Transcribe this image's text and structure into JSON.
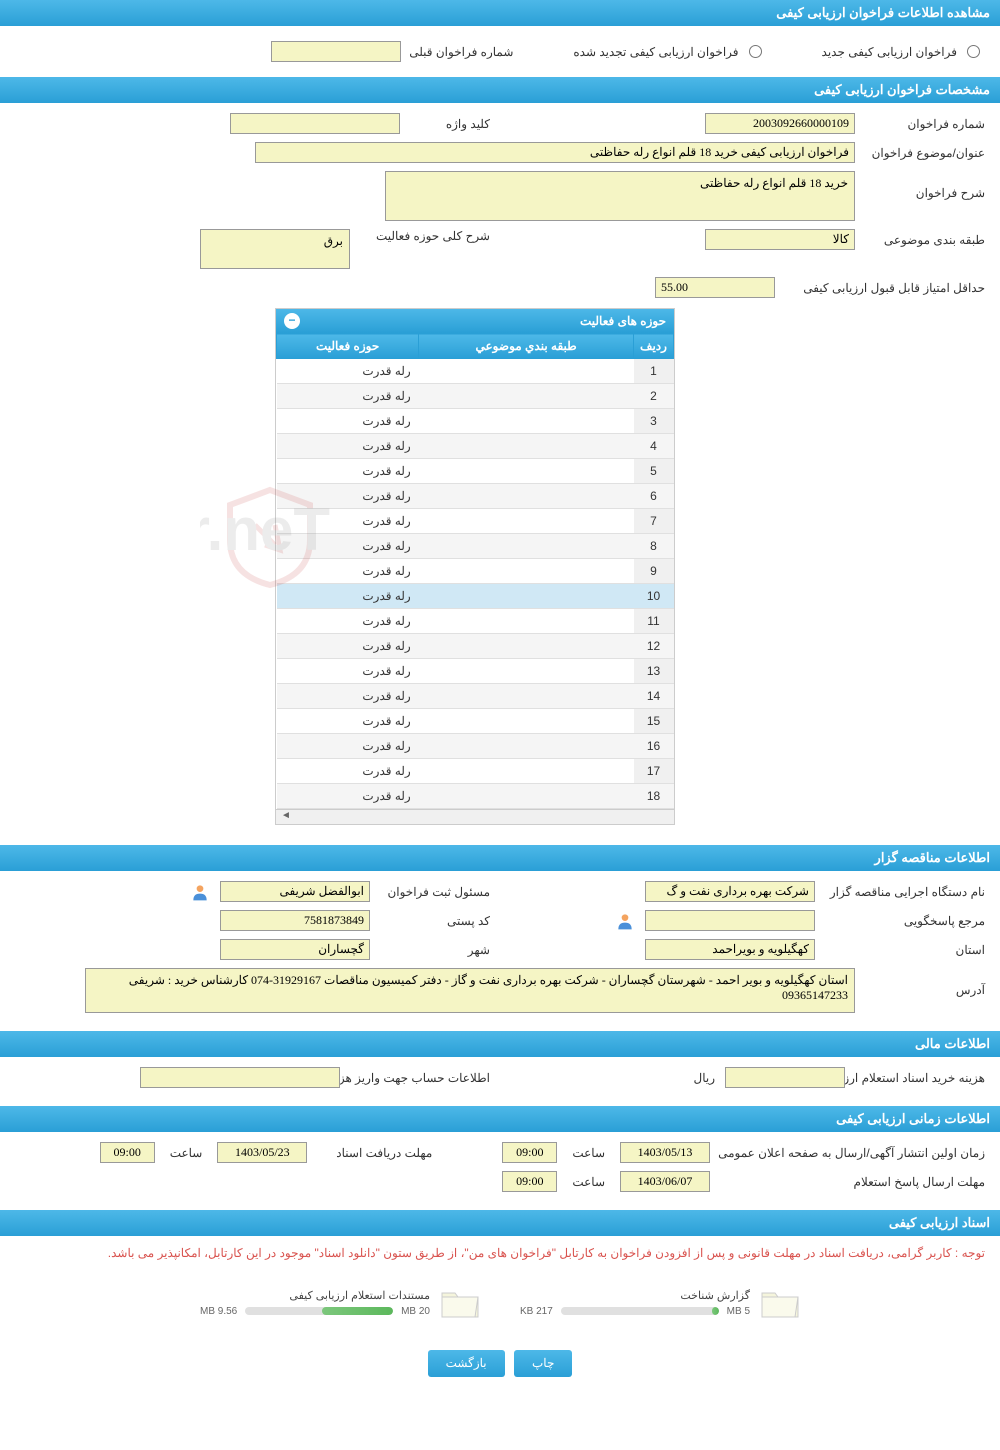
{
  "header": {
    "title": "مشاهده اطلاعات فراخوان ارزیابی کیفی"
  },
  "radio": {
    "opt1": "فراخوان ارزیابی کیفی جدید",
    "opt2": "فراخوان ارزیابی کیفی تجدید شده",
    "prev_label": "شماره فراخوان قبلی",
    "prev_value": ""
  },
  "spec": {
    "header": "مشخصات فراخوان ارزیابی کیفی",
    "number_label": "شماره فراخوان",
    "number_value": "2003092660000109",
    "keyword_label": "کلید واژه",
    "keyword_value": "",
    "title_label": "عنوان/موضوع فراخوان",
    "title_value": "فراخوان ارزیابی کیفی خرید 18 قلم انواع رله حفاظتی",
    "desc_label": "شرح فراخوان",
    "desc_value": "خرید 18 قلم انواع رله حفاظتی",
    "category_label": "طبقه بندی موضوعی",
    "category_value": "کالا",
    "domain_label": "شرح کلی حوزه فعالیت",
    "domain_value": "برق",
    "min_score_label": "حداقل امتیاز قابل قبول ارزیابی کیفی",
    "min_score_value": "55.00"
  },
  "activity_table": {
    "header": "حوزه های فعالیت",
    "col_row": "ردیف",
    "col_cat": "طبقه بندي موضوعي",
    "col_domain": "حوزه فعاليت",
    "rows": [
      {
        "n": "1",
        "cat": "",
        "domain": "رله قدرت"
      },
      {
        "n": "2",
        "cat": "",
        "domain": "رله قدرت"
      },
      {
        "n": "3",
        "cat": "",
        "domain": "رله قدرت"
      },
      {
        "n": "4",
        "cat": "",
        "domain": "رله قدرت"
      },
      {
        "n": "5",
        "cat": "",
        "domain": "رله قدرت"
      },
      {
        "n": "6",
        "cat": "",
        "domain": "رله قدرت"
      },
      {
        "n": "7",
        "cat": "",
        "domain": "رله قدرت"
      },
      {
        "n": "8",
        "cat": "",
        "domain": "رله قدرت"
      },
      {
        "n": "9",
        "cat": "",
        "domain": "رله قدرت"
      },
      {
        "n": "10",
        "cat": "",
        "domain": "رله قدرت"
      },
      {
        "n": "11",
        "cat": "",
        "domain": "رله قدرت"
      },
      {
        "n": "12",
        "cat": "",
        "domain": "رله قدرت"
      },
      {
        "n": "13",
        "cat": "",
        "domain": "رله قدرت"
      },
      {
        "n": "14",
        "cat": "",
        "domain": "رله قدرت"
      },
      {
        "n": "15",
        "cat": "",
        "domain": "رله قدرت"
      },
      {
        "n": "16",
        "cat": "",
        "domain": "رله قدرت"
      },
      {
        "n": "17",
        "cat": "",
        "domain": "رله قدرت"
      },
      {
        "n": "18",
        "cat": "",
        "domain": "رله قدرت"
      }
    ]
  },
  "tenderer": {
    "header": "اطلاعات مناقصه گزار",
    "org_label": "نام دستگاه اجرایی مناقصه گزار",
    "org_value": "شرکت بهره برداری نفت و گ",
    "responsible_label": "مسئول ثبت فراخوان",
    "responsible_value": "ابوالفضل شریفی",
    "reply_label": "مرجع پاسخگویی",
    "reply_value": "",
    "postal_label": "کد پستی",
    "postal_value": "7581873849",
    "province_label": "استان",
    "province_value": "کهگیلویه و بویراحمد",
    "city_label": "شهر",
    "city_value": "گچساران",
    "address_label": "آدرس",
    "address_value": "استان کهگیلویه و بویر احمد - شهرستان گچساران - شرکت بهره برداری نفت و گاز - دفتر کمیسیون مناقصات 31929167-074 کارشناس خرید : شریفی 09365147233"
  },
  "financial": {
    "header": "اطلاعات مالی",
    "cost_label": "هزینه خرید اسناد استعلام ارزیابی کیفی",
    "cost_value": "",
    "currency": "ریال",
    "account_label": "اطلاعات حساب جهت واریز هزینه خرید اسناد",
    "account_value": ""
  },
  "timing": {
    "header": "اطلاعات زمانی ارزیابی کیفی",
    "publish_label": "زمان اولین انتشار آگهی/ارسال به صفحه اعلان عمومی",
    "publish_date": "1403/05/13",
    "publish_time": "09:00",
    "deadline_label": "مهلت دریافت اسناد",
    "deadline_date": "1403/05/23",
    "deadline_time": "09:00",
    "reply_label": "مهلت ارسال پاسخ استعلام",
    "reply_date": "1403/06/07",
    "reply_time": "09:00",
    "time_label": "ساعت"
  },
  "documents": {
    "header": "اسناد ارزیابی کیفی",
    "notice": "توجه : کاربر گرامی، دریافت اسناد در مهلت قانونی و پس از افزودن فراخوان به کارتابل \"فراخوان های من\"، از طریق ستون \"دانلود اسناد\" موجود در این کارتابل، امکانپذیر می باشد.",
    "doc1_title": "گزارش شناخت",
    "doc1_size": "217 KB",
    "doc1_total": "5 MB",
    "doc1_pct": 4,
    "doc2_title": "مستندات استعلام ارزیابی کیفی",
    "doc2_size": "9.56 MB",
    "doc2_total": "20 MB",
    "doc2_pct": 48
  },
  "buttons": {
    "print": "چاپ",
    "back": "بازگشت"
  },
  "colors": {
    "header_bg": "#2a9fd6",
    "input_bg": "#f5f5c5",
    "notice_color": "#d9534f"
  }
}
